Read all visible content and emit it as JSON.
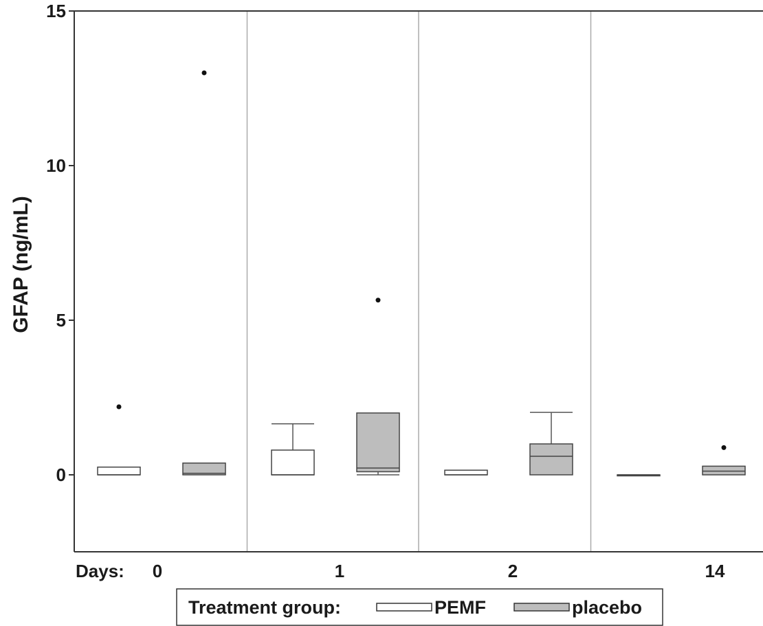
{
  "chart_data": {
    "type": "box",
    "ylabel": "GFAP (ng/mL)",
    "xlabel_prefix": "Days:",
    "ylim": [
      -2.5,
      15
    ],
    "yticks": [
      0,
      5,
      10,
      15
    ],
    "grid": false,
    "panel_separators": true,
    "legend_position": "bottom",
    "legend_title": "Treatment group:",
    "categories": [
      "0",
      "1",
      "2",
      "14"
    ],
    "series": [
      {
        "name": "PEMF",
        "color": "#ffffff",
        "boxes": [
          {
            "day": "0",
            "min": 0.0,
            "q1": 0.0,
            "median": 0.0,
            "q3": 0.25,
            "max": 0.25,
            "outliers": [
              2.2
            ]
          },
          {
            "day": "1",
            "min": 0.0,
            "q1": 0.0,
            "median": 0.0,
            "q3": 0.8,
            "max": 1.65,
            "outliers": []
          },
          {
            "day": "2",
            "min": 0.0,
            "q1": 0.0,
            "median": 0.0,
            "q3": 0.15,
            "max": 0.15,
            "outliers": []
          },
          {
            "day": "14",
            "min": 0.0,
            "q1": 0.0,
            "median": 0.0,
            "q3": 0.0,
            "max": 0.0,
            "outliers": []
          }
        ]
      },
      {
        "name": "placebo",
        "color": "#bdbdbd",
        "boxes": [
          {
            "day": "0",
            "min": 0.0,
            "q1": 0.0,
            "median": 0.05,
            "q3": 0.38,
            "max": 0.38,
            "outliers": [
              13.0
            ]
          },
          {
            "day": "1",
            "min": 0.0,
            "q1": 0.1,
            "median": 0.22,
            "q3": 2.0,
            "max": 2.0,
            "outliers": [
              5.65
            ]
          },
          {
            "day": "2",
            "min": 0.0,
            "q1": 0.0,
            "median": 0.6,
            "q3": 1.0,
            "max": 2.02,
            "outliers": []
          },
          {
            "day": "14",
            "min": 0.0,
            "q1": 0.0,
            "median": 0.12,
            "q3": 0.28,
            "max": 0.28,
            "outliers": [
              0.88
            ]
          }
        ]
      }
    ]
  }
}
